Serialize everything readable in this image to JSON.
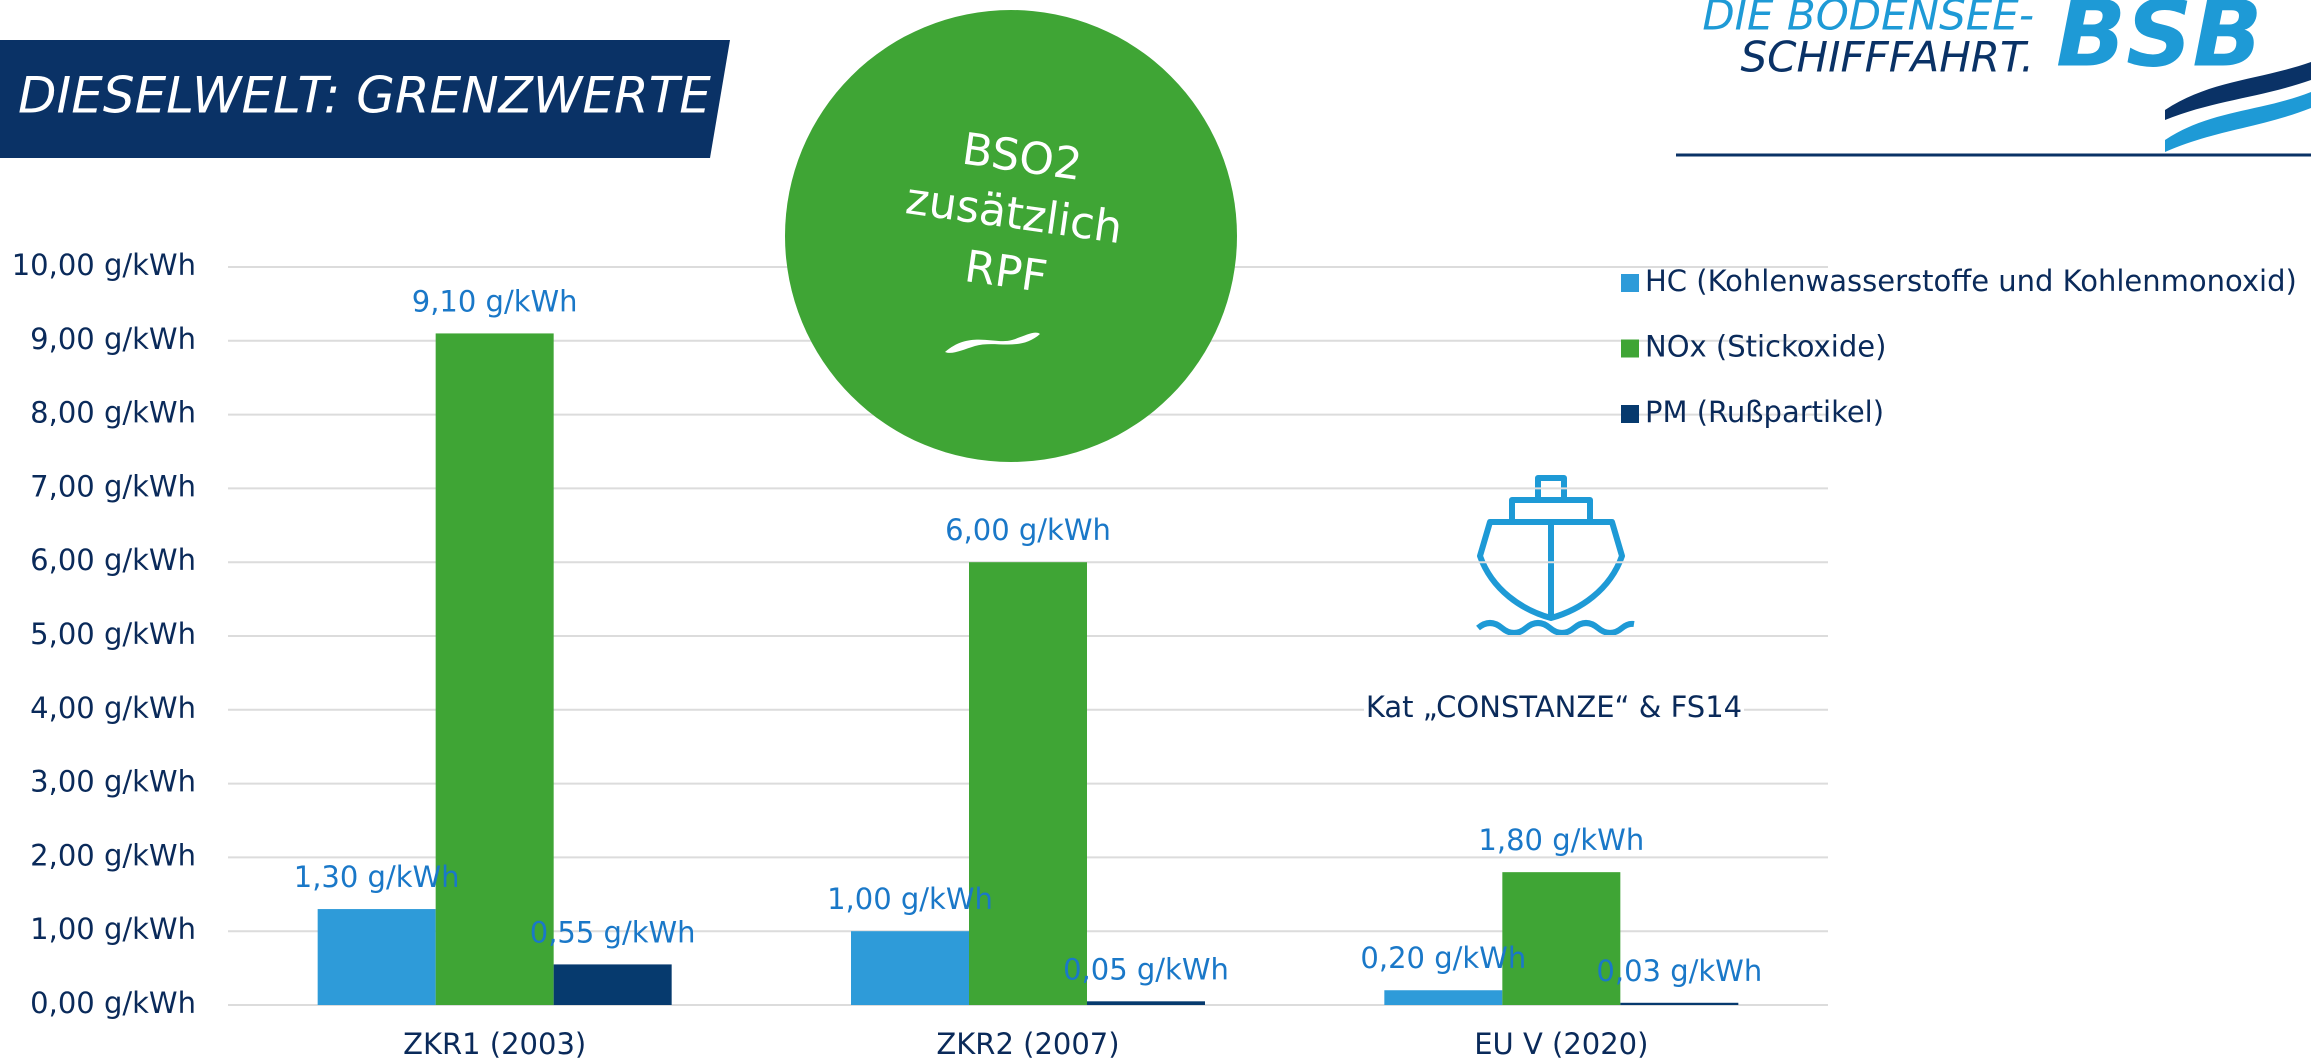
{
  "chart_data": {
    "type": "bar",
    "title": "DIESELWELT: GRENZWERTE",
    "categories": [
      "ZKR1 (2003)",
      "ZKR2 (2007)",
      "EU V (2020)"
    ],
    "series": [
      {
        "name": "HC (Kohlenwasserstoffe und Kohlenmonoxid)",
        "color": "#2e9bd9",
        "values": [
          1.3,
          1.0,
          0.2
        ],
        "value_labels": [
          "1,30 g/kWh",
          "1,00 g/kWh",
          "0,20 g/kWh"
        ]
      },
      {
        "name": "NOx (Stickoxide)",
        "color": "#3fa535",
        "values": [
          9.1,
          6.0,
          1.8
        ],
        "value_labels": [
          "9,10 g/kWh",
          "6,00 g/kWh",
          "1,80 g/kWh"
        ]
      },
      {
        "name": "PM (Rußpartikel)",
        "color": "#063a6e",
        "values": [
          0.55,
          0.05,
          0.03
        ],
        "value_labels": [
          "0,55 g/kWh",
          "0,05 g/kWh",
          "0,03 g/kWh"
        ]
      }
    ],
    "ylim": [
      0,
      10
    ],
    "yticks": [
      {
        "value": 0,
        "label": "0,00 g/kWh"
      },
      {
        "value": 1,
        "label": "1,00 g/kWh"
      },
      {
        "value": 2,
        "label": "2,00 g/kWh"
      },
      {
        "value": 3,
        "label": "3,00 g/kWh"
      },
      {
        "value": 4,
        "label": "4,00 g/kWh"
      },
      {
        "value": 5,
        "label": "5,00 g/kWh"
      },
      {
        "value": 6,
        "label": "6,00 g/kWh"
      },
      {
        "value": 7,
        "label": "7,00 g/kWh"
      },
      {
        "value": 8,
        "label": "8,00 g/kWh"
      },
      {
        "value": 9,
        "label": "9,00 g/kWh"
      },
      {
        "value": 10,
        "label": "10,00 g/kWh"
      }
    ],
    "grid": true,
    "legend": "right",
    "badge": [
      "BSO2",
      "zusätzlich",
      "RPF"
    ],
    "annotation": "Kat „CONSTANZE“ & FS14"
  },
  "logo": {
    "line1": "DIE BODENSEE-",
    "line2": "SCHIFFFAHRT.",
    "mark": "BSB"
  }
}
